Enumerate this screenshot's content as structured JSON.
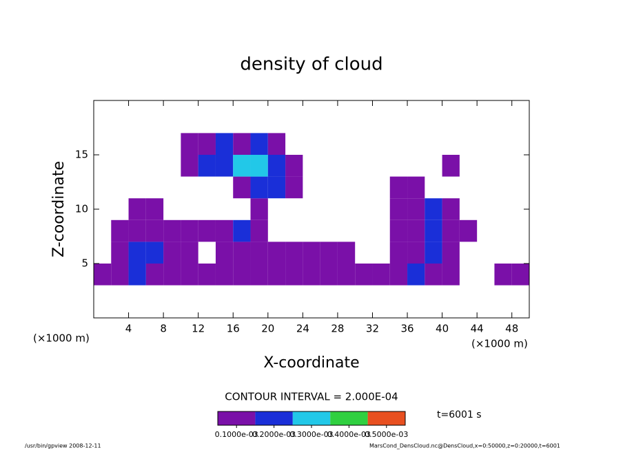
{
  "chart_data": {
    "type": "heatmap",
    "title": "density of cloud",
    "x_label": "X-coordinate",
    "y_label": "Z-coordinate",
    "x_unit": "(×1000 m)",
    "y_unit": "(×1000 m)",
    "xlim": [
      0,
      50
    ],
    "xticks": [
      4,
      8,
      12,
      16,
      20,
      24,
      28,
      32,
      36,
      40,
      44,
      48
    ],
    "ylim": [
      0,
      20
    ],
    "yticks": [
      5,
      10,
      15
    ],
    "x_edges": [
      0,
      2,
      4,
      6,
      8,
      10,
      12,
      14,
      16,
      18,
      20,
      22,
      24,
      26,
      28,
      30,
      32,
      34,
      36,
      38,
      40,
      42,
      44,
      46,
      48,
      50
    ],
    "y_edges": [
      3,
      5,
      7,
      9,
      11,
      13,
      15,
      17
    ],
    "values": [
      [
        0.0001,
        0.0001,
        0.0002,
        0.0001,
        0.0001,
        0.0001,
        0.0001,
        0.0001,
        0.0001,
        0.0001,
        0.0001,
        0.0001,
        0.0001,
        0.0001,
        0.0001,
        0.0001,
        0.0001,
        0.0001,
        0.0002,
        0.0001,
        0.0001,
        null,
        null,
        0.0001,
        0.0001
      ],
      [
        null,
        0.0001,
        0.0002,
        0.0002,
        0.0001,
        0.0001,
        null,
        0.0001,
        0.0001,
        0.0001,
        0.0001,
        0.0001,
        0.0001,
        0.0001,
        0.0001,
        null,
        null,
        0.0001,
        0.0001,
        0.0002,
        0.0001,
        null,
        null,
        null,
        null
      ],
      [
        null,
        0.0001,
        0.0001,
        0.0001,
        0.0001,
        0.0001,
        0.0001,
        0.0001,
        0.0002,
        0.0001,
        null,
        null,
        null,
        null,
        null,
        null,
        null,
        0.0001,
        0.0001,
        0.0002,
        0.0001,
        0.0001,
        null,
        null,
        null
      ],
      [
        null,
        null,
        0.0001,
        0.0001,
        null,
        null,
        null,
        null,
        null,
        0.0001,
        null,
        null,
        null,
        null,
        null,
        null,
        null,
        0.0001,
        0.0001,
        0.0002,
        0.0001,
        null,
        null,
        null,
        null
      ],
      [
        null,
        null,
        null,
        null,
        null,
        null,
        null,
        null,
        0.0001,
        0.0002,
        0.0002,
        0.0001,
        null,
        null,
        null,
        null,
        null,
        0.0001,
        0.0001,
        null,
        null,
        null,
        null,
        null,
        null
      ],
      [
        null,
        null,
        null,
        null,
        null,
        0.0001,
        0.0002,
        0.0002,
        0.0003,
        0.0003,
        0.0002,
        0.0001,
        null,
        null,
        null,
        null,
        null,
        null,
        null,
        null,
        0.0001,
        null,
        null,
        null,
        null
      ],
      [
        null,
        null,
        null,
        null,
        null,
        0.0001,
        0.0001,
        0.0002,
        0.0001,
        0.0002,
        0.0001,
        null,
        null,
        null,
        null,
        null,
        null,
        null,
        null,
        null,
        null,
        null,
        null,
        null,
        null
      ]
    ],
    "colorbar_ticks": [
      {
        "value": 0.0001,
        "label": "0.1000e-03"
      },
      {
        "value": 0.0002,
        "label": "0.2000e-03"
      },
      {
        "value": 0.0003,
        "label": "0.3000e-03"
      },
      {
        "value": 0.0004,
        "label": "0.4000e-03"
      },
      {
        "value": 0.0005,
        "label": "0.5000e-03"
      }
    ],
    "colors": [
      "#7a10a8",
      "#1a2fd8",
      "#22c8e8",
      "#30d040",
      "#e85020"
    ],
    "contour_interval": "CONTOUR INTERVAL = 2.000E-04",
    "time": "t=6001 s",
    "footer_left": "/usr/bin/gpview   2008-12-11",
    "footer_right": "MarsCond_DensCloud.nc@DensCloud,x=0:50000,z=0:20000,t=6001"
  }
}
